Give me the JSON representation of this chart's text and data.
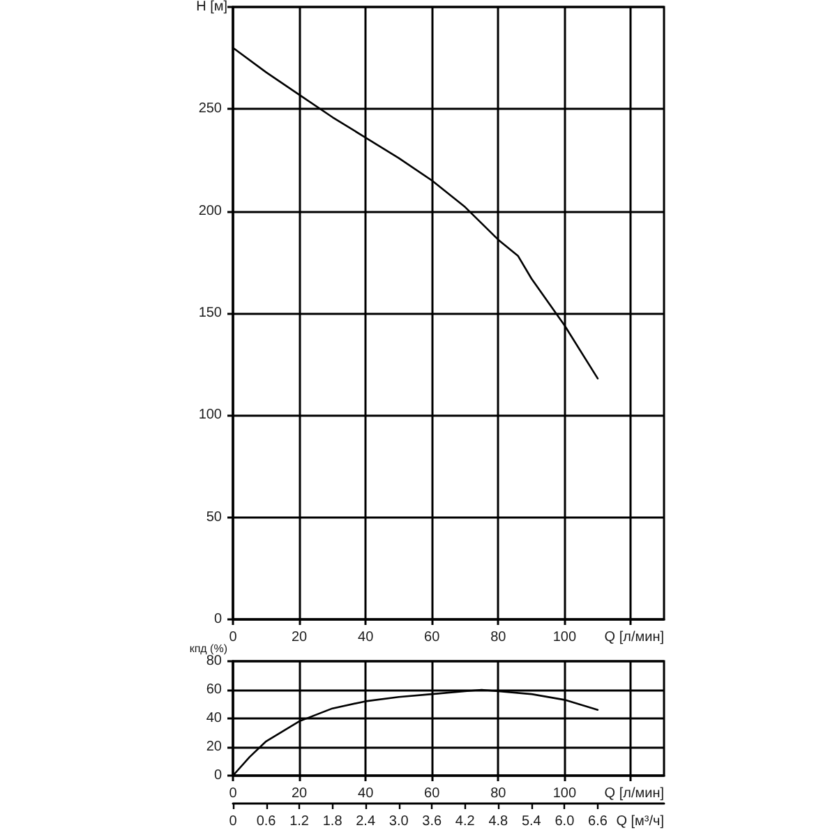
{
  "chart_data": [
    {
      "type": "line",
      "ylabel": "H [м]",
      "xlabel": "Q [л/мин]",
      "xlim": [
        0,
        130
      ],
      "xticks": [
        0,
        20,
        40,
        60,
        80,
        100,
        {
          "value": 120,
          "label": null
        }
      ],
      "ylim": [
        0,
        300
      ],
      "yticks": [
        0,
        50,
        100,
        150,
        200,
        250,
        {
          "value": 300,
          "label": null
        }
      ],
      "grid": true,
      "tick_labels": "xy",
      "series": [
        {
          "color": "#000000",
          "x": [
            0,
            10,
            20,
            30,
            40,
            50,
            60,
            70,
            80,
            86,
            90,
            100,
            110
          ],
          "values": [
            280,
            268,
            257,
            246,
            236,
            226,
            215,
            202,
            186,
            178,
            167,
            144,
            118
          ]
        }
      ]
    },
    {
      "type": "line",
      "ylabel": "кпд (%)",
      "xlabel": "Q [л/мин]",
      "x2label": "Q [м³/ч]",
      "xlim": [
        0,
        130
      ],
      "xticks": [
        0,
        20,
        40,
        60,
        80,
        100,
        {
          "value": 120,
          "label": null
        }
      ],
      "ylim": [
        0,
        80
      ],
      "yticks": [
        0,
        20,
        40,
        60,
        80
      ],
      "x2lim": [
        0,
        7.8
      ],
      "x2ticks": [
        0,
        0.6,
        1.2,
        1.8,
        2.4,
        {
          "value": 3,
          "label": "3.0"
        },
        3.6,
        4.2,
        4.8,
        5.4,
        {
          "value": 6,
          "label": "6.0"
        },
        6.6
      ],
      "grid": true,
      "series": [
        {
          "color": "#000000",
          "x": [
            0,
            5,
            10,
            20,
            30,
            40,
            50,
            60,
            70,
            75,
            80,
            90,
            100,
            110
          ],
          "values": [
            0,
            13,
            24,
            38,
            47,
            52,
            55,
            57,
            59,
            60,
            59,
            57,
            53,
            46
          ]
        }
      ]
    }
  ]
}
